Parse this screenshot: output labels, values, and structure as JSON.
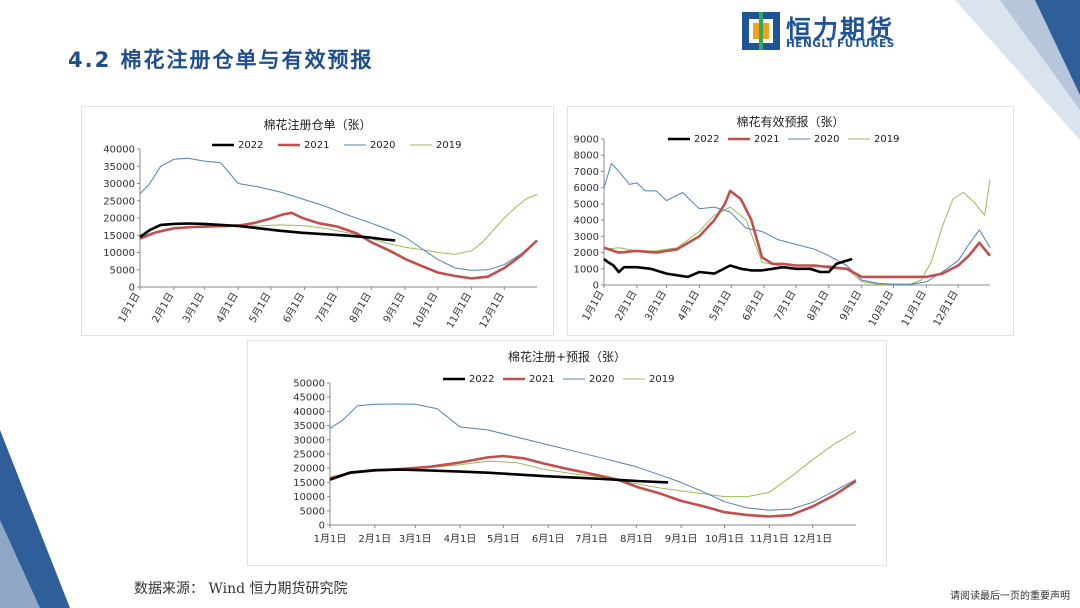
{
  "header": {
    "title": "4.2  棉花注册仓单与有效预报",
    "logo_cn": "恒力期货",
    "logo_en": "HENGLI FUTURES"
  },
  "footer": {
    "source": "数据来源：  Wind  恒力期货研究院",
    "note": "请阅读最后一页的重要声明"
  },
  "colors": {
    "s2022": "#000000",
    "s2021": "#c0504d",
    "s2020": "#4f81bd",
    "s2019": "#9bbb59",
    "accent": "#1f4e8c"
  },
  "chart_data": [
    {
      "type": "line",
      "title": "棉花注册仓单（张）",
      "ylim": [
        0,
        40000
      ],
      "yticks": [
        0,
        5000,
        10000,
        15000,
        20000,
        25000,
        30000,
        35000,
        40000
      ],
      "xlim": [
        1,
        365
      ],
      "xticks": [
        {
          "pos": 1,
          "label": "1月1日"
        },
        {
          "pos": 32,
          "label": "2月1日"
        },
        {
          "pos": 60,
          "label": "3月1日"
        },
        {
          "pos": 91,
          "label": "4月1日"
        },
        {
          "pos": 121,
          "label": "5月1日"
        },
        {
          "pos": 152,
          "label": "6月1日"
        },
        {
          "pos": 182,
          "label": "7月1日"
        },
        {
          "pos": 213,
          "label": "8月1日"
        },
        {
          "pos": 244,
          "label": "9月1日"
        },
        {
          "pos": 274,
          "label": "10月1日"
        },
        {
          "pos": 305,
          "label": "11月1日"
        },
        {
          "pos": 335,
          "label": "12月1日"
        }
      ],
      "series": [
        {
          "name": "2022",
          "x": [
            1,
            10,
            20,
            32,
            45,
            60,
            75,
            91,
            110,
            130,
            150,
            170,
            190,
            210,
            225,
            235
          ],
          "values": [
            14500,
            16500,
            18000,
            18300,
            18400,
            18300,
            18000,
            17700,
            17000,
            16300,
            15700,
            15300,
            14900,
            14400,
            13800,
            13500
          ]
        },
        {
          "name": "2021",
          "x": [
            1,
            15,
            32,
            50,
            70,
            91,
            105,
            120,
            132,
            140,
            150,
            165,
            182,
            200,
            213,
            230,
            245,
            260,
            274,
            290,
            305,
            320,
            335,
            350,
            365
          ],
          "values": [
            14000,
            15800,
            17000,
            17400,
            17600,
            17800,
            18500,
            19800,
            21000,
            21500,
            20000,
            18500,
            17500,
            15500,
            13000,
            10500,
            8000,
            6000,
            4200,
            3200,
            2500,
            3000,
            5500,
            9000,
            13500
          ]
        },
        {
          "name": "2020",
          "x": [
            1,
            10,
            20,
            32,
            45,
            60,
            75,
            91,
            110,
            130,
            150,
            170,
            190,
            213,
            230,
            244,
            260,
            274,
            290,
            305,
            320,
            335,
            350,
            365
          ],
          "values": [
            27000,
            30000,
            35000,
            37000,
            37300,
            36500,
            36000,
            30000,
            29000,
            27500,
            25500,
            23500,
            21000,
            18500,
            16500,
            14500,
            11000,
            8000,
            5500,
            4800,
            5000,
            6500,
            9500,
            13500
          ]
        },
        {
          "name": "2019",
          "x": [
            1,
            15,
            32,
            50,
            70,
            91,
            110,
            130,
            150,
            170,
            190,
            213,
            230,
            244,
            260,
            274,
            290,
            305,
            315,
            325,
            335,
            345,
            355,
            365
          ],
          "values": [
            14500,
            16000,
            17000,
            17500,
            17800,
            17600,
            17700,
            18000,
            17800,
            17000,
            15800,
            14000,
            12500,
            11500,
            10800,
            10000,
            9500,
            10500,
            13000,
            16500,
            20000,
            23000,
            25500,
            26800
          ]
        }
      ]
    },
    {
      "type": "line",
      "title": "棉花有效预报（张）",
      "ylim": [
        0,
        9000
      ],
      "yticks": [
        0,
        1000,
        2000,
        3000,
        4000,
        5000,
        6000,
        7000,
        8000,
        9000
      ],
      "xlim": [
        1,
        365
      ],
      "xticks": [
        {
          "pos": 1,
          "label": "1月1日"
        },
        {
          "pos": 32,
          "label": "2月1日"
        },
        {
          "pos": 60,
          "label": "3月1日"
        },
        {
          "pos": 91,
          "label": "4月1日"
        },
        {
          "pos": 121,
          "label": "5月1日"
        },
        {
          "pos": 152,
          "label": "6月1日"
        },
        {
          "pos": 182,
          "label": "7月1日"
        },
        {
          "pos": 213,
          "label": "8月1日"
        },
        {
          "pos": 244,
          "label": "9月1日"
        },
        {
          "pos": 274,
          "label": "10月1日"
        },
        {
          "pos": 305,
          "label": "11月1日"
        },
        {
          "pos": 335,
          "label": "12月1日"
        }
      ],
      "series": [
        {
          "name": "2022",
          "x": [
            1,
            5,
            10,
            15,
            20,
            32,
            45,
            60,
            70,
            80,
            91,
            105,
            120,
            130,
            140,
            150,
            160,
            170,
            182,
            195,
            205,
            213,
            220,
            235
          ],
          "values": [
            1600,
            1400,
            1200,
            800,
            1100,
            1100,
            1000,
            700,
            600,
            500,
            800,
            700,
            1200,
            1000,
            900,
            900,
            1000,
            1100,
            1000,
            1000,
            800,
            800,
            1300,
            1600
          ]
        },
        {
          "name": "2021",
          "x": [
            1,
            15,
            32,
            50,
            70,
            91,
            105,
            115,
            120,
            130,
            140,
            150,
            160,
            170,
            182,
            200,
            213,
            230,
            244,
            260,
            274,
            290,
            305,
            320,
            335,
            345,
            355,
            365
          ],
          "values": [
            2300,
            2000,
            2100,
            2000,
            2200,
            3000,
            4000,
            5000,
            5800,
            5300,
            4000,
            1700,
            1300,
            1300,
            1200,
            1200,
            1100,
            1000,
            500,
            500,
            500,
            500,
            500,
            700,
            1200,
            1800,
            2600,
            1800
          ]
        },
        {
          "name": "2020",
          "x": [
            1,
            8,
            15,
            25,
            32,
            40,
            50,
            60,
            75,
            91,
            105,
            120,
            135,
            150,
            165,
            182,
            200,
            213,
            230,
            244,
            260,
            274,
            290,
            305,
            320,
            335,
            345,
            355,
            365
          ],
          "values": [
            6000,
            7500,
            7000,
            6200,
            6300,
            5800,
            5800,
            5200,
            5700,
            4700,
            4800,
            4500,
            3500,
            3300,
            2800,
            2500,
            2200,
            1800,
            1200,
            300,
            100,
            50,
            50,
            200,
            800,
            1500,
            2500,
            3400,
            2300
          ]
        },
        {
          "name": "2019",
          "x": [
            1,
            15,
            32,
            50,
            70,
            91,
            105,
            120,
            135,
            150,
            165,
            182,
            200,
            213,
            230,
            244,
            260,
            274,
            290,
            300,
            310,
            320,
            330,
            340,
            350,
            360,
            365
          ],
          "values": [
            2200,
            2300,
            2100,
            2100,
            2300,
            3300,
            4300,
            4800,
            4000,
            1400,
            1200,
            1000,
            1100,
            1200,
            1000,
            200,
            50,
            50,
            50,
            300,
            1500,
            3600,
            5300,
            5700,
            5100,
            4300,
            6500
          ]
        }
      ]
    },
    {
      "type": "line",
      "title": "棉花注册+预报（张）",
      "ylim": [
        0,
        50000
      ],
      "yticks": [
        0,
        5000,
        10000,
        15000,
        20000,
        25000,
        30000,
        35000,
        40000,
        45000,
        50000
      ],
      "xlim": [
        1,
        365
      ],
      "xticks": [
        {
          "pos": 1,
          "label": "1月1日"
        },
        {
          "pos": 32,
          "label": "2月1日"
        },
        {
          "pos": 60,
          "label": "3月1日"
        },
        {
          "pos": 91,
          "label": "4月1日"
        },
        {
          "pos": 121,
          "label": "5月1日"
        },
        {
          "pos": 152,
          "label": "6月1日"
        },
        {
          "pos": 182,
          "label": "7月1日"
        },
        {
          "pos": 213,
          "label": "8月1日"
        },
        {
          "pos": 244,
          "label": "9月1日"
        },
        {
          "pos": 274,
          "label": "10月1日"
        },
        {
          "pos": 305,
          "label": "11月1日"
        },
        {
          "pos": 335,
          "label": "12月1日"
        }
      ],
      "series": [
        {
          "name": "2022",
          "x": [
            1,
            15,
            32,
            50,
            70,
            91,
            110,
            130,
            150,
            170,
            190,
            213,
            235
          ],
          "values": [
            16000,
            18500,
            19300,
            19500,
            19200,
            18800,
            18400,
            17800,
            17200,
            16700,
            16200,
            15500,
            15000
          ]
        },
        {
          "name": "2021",
          "x": [
            1,
            15,
            32,
            50,
            70,
            91,
            110,
            121,
            135,
            150,
            165,
            182,
            200,
            213,
            230,
            244,
            260,
            274,
            290,
            305,
            320,
            335,
            350,
            365
          ],
          "values": [
            16500,
            18300,
            19200,
            19700,
            20500,
            22000,
            23800,
            24300,
            23500,
            21500,
            19800,
            18000,
            16000,
            13500,
            11000,
            8500,
            6500,
            4500,
            3500,
            3000,
            3500,
            6500,
            10500,
            15500
          ]
        },
        {
          "name": "2020",
          "x": [
            1,
            10,
            20,
            32,
            45,
            60,
            75,
            91,
            110,
            130,
            150,
            170,
            190,
            213,
            230,
            244,
            260,
            274,
            290,
            305,
            320,
            335,
            350,
            365
          ],
          "values": [
            34000,
            37000,
            42000,
            42500,
            42600,
            42500,
            41000,
            34500,
            33500,
            31000,
            28500,
            26000,
            23500,
            20500,
            17500,
            15000,
            11500,
            8200,
            6000,
            5200,
            5600,
            8000,
            12000,
            16000
          ]
        },
        {
          "name": "2019",
          "x": [
            1,
            15,
            32,
            50,
            70,
            91,
            110,
            130,
            150,
            170,
            190,
            213,
            230,
            244,
            260,
            274,
            290,
            305,
            320,
            335,
            350,
            365
          ],
          "values": [
            16500,
            18500,
            19200,
            19700,
            20200,
            21200,
            22500,
            22000,
            19500,
            18000,
            16800,
            14500,
            13000,
            12000,
            11000,
            10000,
            10000,
            11500,
            17000,
            23000,
            28500,
            33000
          ]
        }
      ]
    }
  ]
}
